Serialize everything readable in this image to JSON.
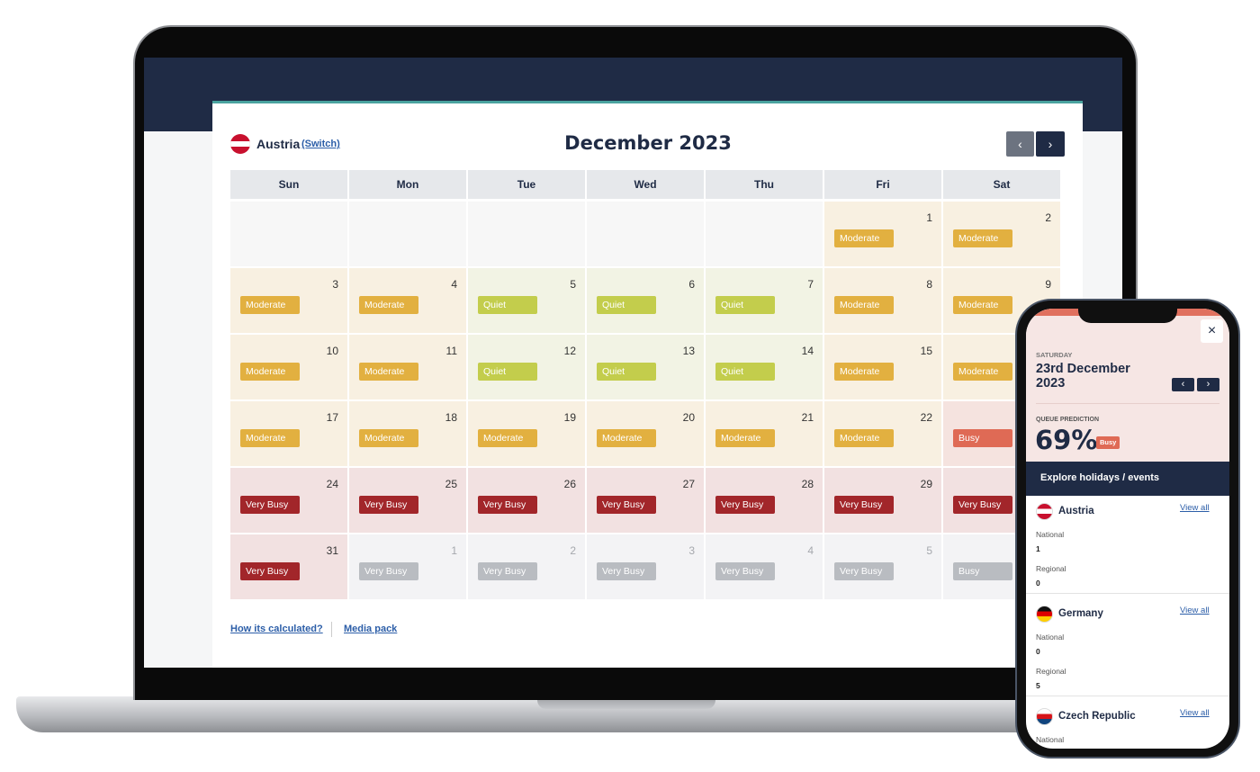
{
  "header": {
    "country": "Austria",
    "switch": "(Switch)",
    "title": "December 2023"
  },
  "calendar": {
    "weekdays": [
      "Sun",
      "Mon",
      "Tue",
      "Wed",
      "Thu",
      "Fri",
      "Sat"
    ],
    "weeks": [
      [
        {
          "bg": "#f7f7f7"
        },
        {
          "bg": "#f7f7f7"
        },
        {
          "bg": "#f7f7f7"
        },
        {
          "bg": "#f7f7f7"
        },
        {
          "bg": "#f7f7f7"
        },
        {
          "day": 1,
          "status": "Moderate",
          "bg": "#f8f0e1",
          "badge": "#e2b040"
        },
        {
          "day": 2,
          "status": "Moderate",
          "bg": "#f8f0e1",
          "badge": "#e2b040"
        }
      ],
      [
        {
          "day": 3,
          "status": "Moderate",
          "bg": "#f8f0e1",
          "badge": "#e2b040"
        },
        {
          "day": 4,
          "status": "Moderate",
          "bg": "#f8f0e1",
          "badge": "#e2b040"
        },
        {
          "day": 5,
          "status": "Quiet",
          "bg": "#f2f3e4",
          "badge": "#c3cd4c"
        },
        {
          "day": 6,
          "status": "Quiet",
          "bg": "#f2f3e4",
          "badge": "#c3cd4c"
        },
        {
          "day": 7,
          "status": "Quiet",
          "bg": "#f2f3e4",
          "badge": "#c3cd4c"
        },
        {
          "day": 8,
          "status": "Moderate",
          "bg": "#f8f0e1",
          "badge": "#e2b040"
        },
        {
          "day": 9,
          "status": "Moderate",
          "bg": "#f8f0e1",
          "badge": "#e2b040"
        }
      ],
      [
        {
          "day": 10,
          "status": "Moderate",
          "bg": "#f8f0e1",
          "badge": "#e2b040"
        },
        {
          "day": 11,
          "status": "Moderate",
          "bg": "#f8f0e1",
          "badge": "#e2b040"
        },
        {
          "day": 12,
          "status": "Quiet",
          "bg": "#f2f3e4",
          "badge": "#c3cd4c"
        },
        {
          "day": 13,
          "status": "Quiet",
          "bg": "#f2f3e4",
          "badge": "#c3cd4c"
        },
        {
          "day": 14,
          "status": "Quiet",
          "bg": "#f2f3e4",
          "badge": "#c3cd4c"
        },
        {
          "day": 15,
          "status": "Moderate",
          "bg": "#f8f0e1",
          "badge": "#e2b040"
        },
        {
          "status": "Moderate",
          "bg": "#f8f0e1",
          "badge": "#e2b040"
        }
      ],
      [
        {
          "day": 17,
          "status": "Moderate",
          "bg": "#f8f0e1",
          "badge": "#e2b040"
        },
        {
          "day": 18,
          "status": "Moderate",
          "bg": "#f8f0e1",
          "badge": "#e2b040"
        },
        {
          "day": 19,
          "status": "Moderate",
          "bg": "#f8f0e1",
          "badge": "#e2b040"
        },
        {
          "day": 20,
          "status": "Moderate",
          "bg": "#f8f0e1",
          "badge": "#e2b040"
        },
        {
          "day": 21,
          "status": "Moderate",
          "bg": "#f8f0e1",
          "badge": "#e2b040"
        },
        {
          "day": 22,
          "status": "Moderate",
          "bg": "#f8f0e1",
          "badge": "#e2b040"
        },
        {
          "status": "Busy",
          "bg": "#f5e3df",
          "badge": "#df6a55"
        }
      ],
      [
        {
          "day": 24,
          "status": "Very Busy",
          "bg": "#f2e1e1",
          "badge": "#a2262a"
        },
        {
          "day": 25,
          "status": "Very Busy",
          "bg": "#f2e1e1",
          "badge": "#a2262a"
        },
        {
          "day": 26,
          "status": "Very Busy",
          "bg": "#f2e1e1",
          "badge": "#a2262a"
        },
        {
          "day": 27,
          "status": "Very Busy",
          "bg": "#f2e1e1",
          "badge": "#a2262a"
        },
        {
          "day": 28,
          "status": "Very Busy",
          "bg": "#f2e1e1",
          "badge": "#a2262a"
        },
        {
          "day": 29,
          "status": "Very Busy",
          "bg": "#f2e1e1",
          "badge": "#a2262a"
        },
        {
          "status": "Very Busy",
          "bg": "#f2e1e1",
          "badge": "#a2262a"
        }
      ],
      [
        {
          "day": 31,
          "status": "Very Busy",
          "bg": "#f2e1e1",
          "badge": "#a2262a"
        },
        {
          "day": 1,
          "status": "Very Busy",
          "bg": "#f3f3f5",
          "badge": "#b9bcc1",
          "muted": true
        },
        {
          "day": 2,
          "status": "Very Busy",
          "bg": "#f3f3f5",
          "badge": "#b9bcc1",
          "muted": true
        },
        {
          "day": 3,
          "status": "Very Busy",
          "bg": "#f3f3f5",
          "badge": "#b9bcc1",
          "muted": true
        },
        {
          "day": 4,
          "status": "Very Busy",
          "bg": "#f3f3f5",
          "badge": "#b9bcc1",
          "muted": true
        },
        {
          "day": 5,
          "status": "Very Busy",
          "bg": "#f3f3f5",
          "badge": "#b9bcc1",
          "muted": true
        },
        {
          "status": "Busy",
          "bg": "#f3f3f5",
          "badge": "#b9bcc1",
          "muted": true
        }
      ]
    ]
  },
  "footer": {
    "links": [
      "How its calculated?",
      "Media pack"
    ]
  },
  "phone": {
    "weekday": "SATURDAY",
    "date": "23rd December 2023",
    "prediction_label": "QUEUE PREDICTION",
    "prediction": "69%",
    "status": "Busy",
    "section": "Explore holidays / events",
    "countries": [
      {
        "name": "Austria",
        "link": "View all",
        "flag": [
          "#c8102e",
          "#ffffff",
          "#c8102e"
        ],
        "stats": [
          {
            "label": "National",
            "value": 1
          },
          {
            "label": "Regional",
            "value": 0
          }
        ]
      },
      {
        "name": "Germany",
        "link": "View all",
        "flag": [
          "#111111",
          "#dd0000",
          "#ffce00"
        ],
        "stats": [
          {
            "label": "National",
            "value": 0
          },
          {
            "label": "Regional",
            "value": 5
          }
        ]
      },
      {
        "name": "Czech Republic",
        "link": "View all",
        "flag": [
          "#ffffff",
          "#d7141a",
          "#11457e"
        ],
        "stats": [
          {
            "label": "National"
          }
        ]
      }
    ]
  }
}
